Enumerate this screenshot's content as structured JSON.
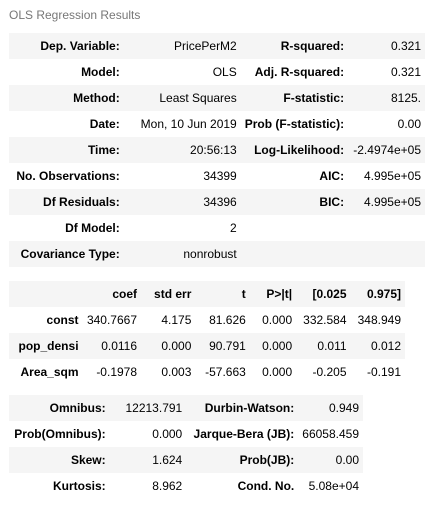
{
  "caption": "OLS Regression Results",
  "summary": [
    {
      "k1": "Dep. Variable:",
      "v1": "PricePerM2",
      "k2": "R-squared:",
      "v2": "0.321"
    },
    {
      "k1": "Model:",
      "v1": "OLS",
      "k2": "Adj. R-squared:",
      "v2": "0.321"
    },
    {
      "k1": "Method:",
      "v1": "Least Squares",
      "k2": "F-statistic:",
      "v2": "8125."
    },
    {
      "k1": "Date:",
      "v1": "Mon, 10 Jun 2019",
      "k2": "Prob (F-statistic):",
      "v2": "0.00"
    },
    {
      "k1": "Time:",
      "v1": "20:56:13",
      "k2": "Log-Likelihood:",
      "v2": "-2.4974e+05"
    },
    {
      "k1": "No. Observations:",
      "v1": "34399",
      "k2": "AIC:",
      "v2": "4.995e+05"
    },
    {
      "k1": "Df Residuals:",
      "v1": "34396",
      "k2": "BIC:",
      "v2": "4.995e+05"
    },
    {
      "k1": "Df Model:",
      "v1": "2",
      "k2": "",
      "v2": ""
    },
    {
      "k1": "Covariance Type:",
      "v1": "nonrobust",
      "k2": "",
      "v2": ""
    }
  ],
  "coef": {
    "headers": [
      "",
      "coef",
      "std err",
      "t",
      "P>|t|",
      "[0.025",
      "0.975]"
    ],
    "rows": [
      [
        "const",
        "340.7667",
        "4.175",
        "81.626",
        "0.000",
        "332.584",
        "348.949"
      ],
      [
        "pop_densi",
        "0.0116",
        "0.000",
        "90.791",
        "0.000",
        "0.011",
        "0.012"
      ],
      [
        "Area_sqm",
        "-0.1978",
        "0.003",
        "-57.663",
        "0.000",
        "-0.205",
        "-0.191"
      ]
    ]
  },
  "diagnostics": [
    {
      "k1": "Omnibus:",
      "v1": "12213.791",
      "k2": "Durbin-Watson:",
      "v2": "0.949"
    },
    {
      "k1": "Prob(Omnibus):",
      "v1": "0.000",
      "k2": "Jarque-Bera (JB):",
      "v2": "66058.459"
    },
    {
      "k1": "Skew:",
      "v1": "1.624",
      "k2": "Prob(JB):",
      "v2": "0.00"
    },
    {
      "k1": "Kurtosis:",
      "v1": "8.962",
      "k2": "Cond. No.",
      "v2": "5.08e+04"
    }
  ]
}
